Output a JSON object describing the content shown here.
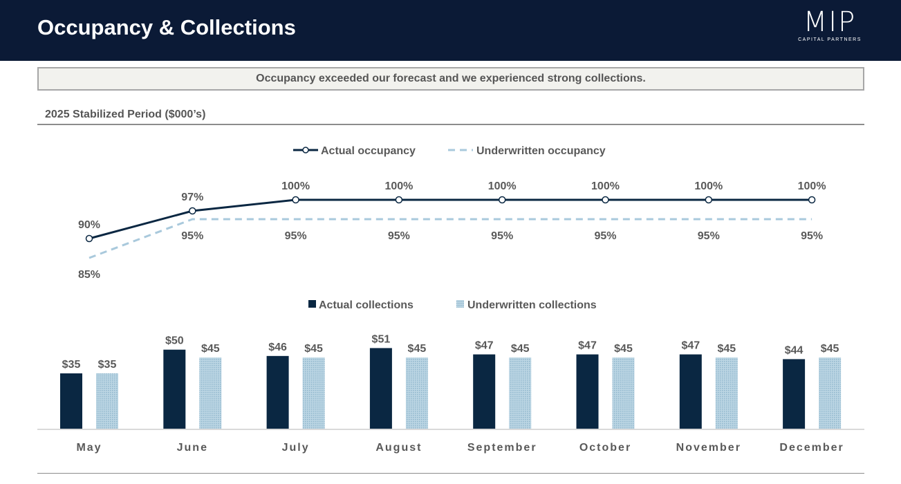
{
  "header": {
    "title": "Occupancy & Collections",
    "logo_mark": "MIP",
    "logo_sub": "CAPITAL PARTNERS"
  },
  "banner": "Occupancy exceeded our forecast and we experienced strong collections.",
  "subtitle": "2025 Stabilized Period ($000’s)",
  "colors": {
    "navy": "#0b1a36",
    "actual": "#0a2742",
    "underwritten": "#a9c9dc"
  },
  "chart_data": [
    {
      "type": "line",
      "title": "Occupancy",
      "categories": [
        "May",
        "June",
        "July",
        "August",
        "September",
        "October",
        "November",
        "December"
      ],
      "series": [
        {
          "name": "Actual occupancy",
          "values": [
            90,
            97,
            100,
            100,
            100,
            100,
            100,
            100
          ],
          "labels": [
            "90%",
            "97%",
            "100%",
            "100%",
            "100%",
            "100%",
            "100%",
            "100%"
          ]
        },
        {
          "name": "Underwritten occupancy",
          "values": [
            85,
            95,
            95,
            95,
            95,
            95,
            95,
            95
          ],
          "labels": [
            "85%",
            "95%",
            "95%",
            "95%",
            "95%",
            "95%",
            "95%",
            "95%"
          ]
        }
      ],
      "legend": "top-center"
    },
    {
      "type": "bar",
      "title": "Collections",
      "categories": [
        "May",
        "June",
        "July",
        "August",
        "September",
        "October",
        "November",
        "December"
      ],
      "series": [
        {
          "name": "Actual collections",
          "values": [
            35,
            50,
            46,
            51,
            47,
            47,
            47,
            44
          ],
          "labels": [
            "$35",
            "$50",
            "$46",
            "$51",
            "$47",
            "$47",
            "$47",
            "$44"
          ]
        },
        {
          "name": "Underwritten collections",
          "values": [
            35,
            45,
            45,
            45,
            45,
            45,
            45,
            45
          ],
          "labels": [
            "$35",
            "$45",
            "$45",
            "$45",
            "$45",
            "$45",
            "$45",
            "$45"
          ]
        }
      ],
      "legend": "top-center"
    }
  ]
}
